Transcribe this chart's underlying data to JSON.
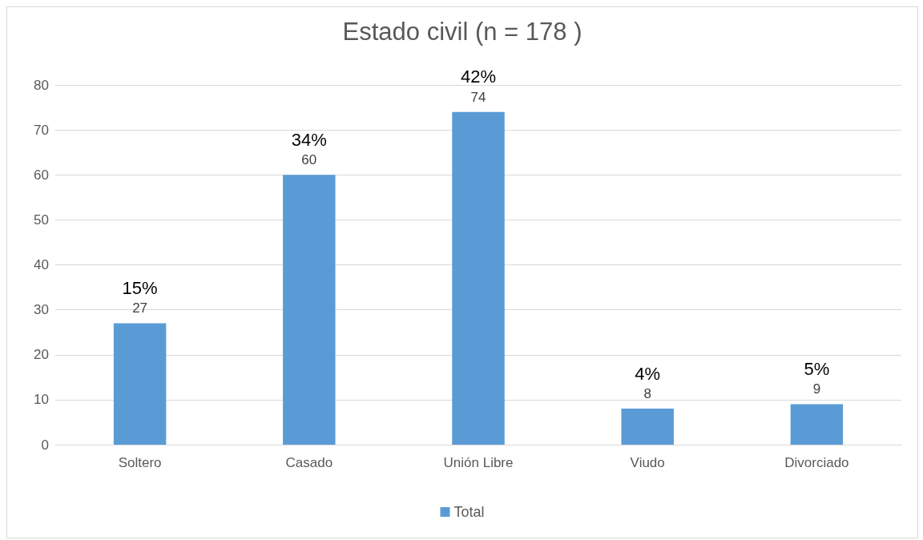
{
  "chart_data": {
    "type": "bar",
    "title": "Estado civil (n = 178 )",
    "categories": [
      "Soltero",
      "Casado",
      "Unión Libre",
      "Viudo",
      "Divorciado"
    ],
    "series": [
      {
        "name": "Total",
        "color": "#5b9bd5",
        "values": [
          27,
          60,
          74,
          8,
          9
        ]
      }
    ],
    "ylim": [
      0,
      80
    ],
    "yticks": [
      0,
      10,
      20,
      30,
      40,
      50,
      60,
      70,
      80
    ],
    "grid": "y",
    "legend": "bottom",
    "data_labels": true,
    "annotations": [
      {
        "text": "15%",
        "x": "Soltero",
        "y": 27
      },
      {
        "text": "34%",
        "x": "Casado",
        "y": 60
      },
      {
        "text": "42%",
        "x": "Unión Libre",
        "y": 74
      },
      {
        "text": "4%",
        "x": "Viudo",
        "y": 8
      },
      {
        "text": "5%",
        "x": "Divorciado",
        "y": 9
      }
    ]
  }
}
